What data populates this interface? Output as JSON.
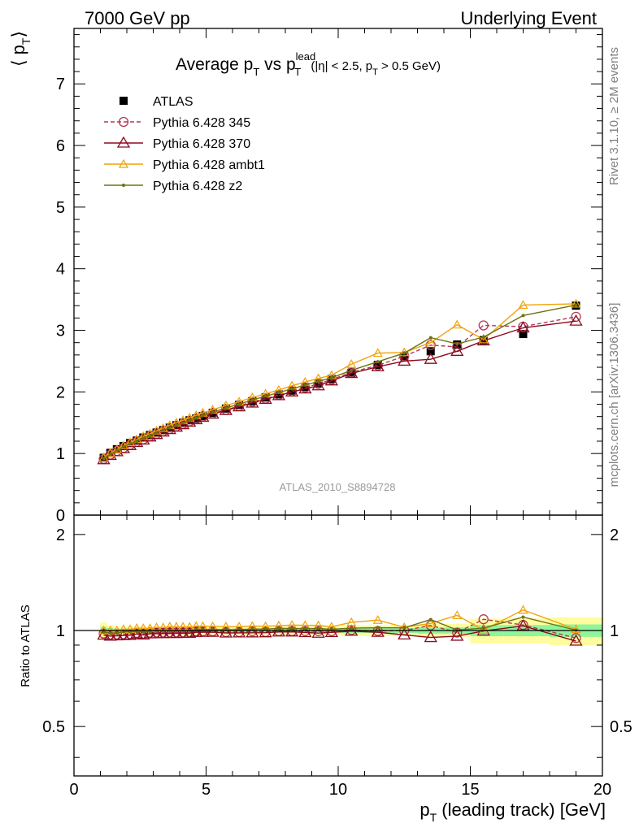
{
  "header": {
    "left": "7000 GeV pp",
    "right": "Underlying Event"
  },
  "side_labels": {
    "top": "Rivet 3.1.10, ≥ 2M events",
    "bottom": "mcplots.cern.ch [arXiv:1306.3436]"
  },
  "watermark": "ATLAS_2010_S8894728",
  "colors": {
    "ATLAS": "#000000",
    "p345": "#b03a55",
    "p370": "#8b0a1e",
    "ambt1": "#f0a30a",
    "z2": "#6b7310",
    "band_green": "#8ff59a",
    "band_yellow": "#fffca0"
  },
  "chart_data": {
    "type": "line",
    "title": {
      "main": "Average p",
      "sub1": "T",
      "vs": " vs p",
      "sup": "lead",
      "sub2": "T",
      "cuts_a": " (|η| < 2.5, p",
      "cuts_sub": "T",
      "cuts_b": " > 0.5 GeV)"
    },
    "xlabel": {
      "main": "p",
      "sub": "T",
      "rest": " (leading track) [GeV]"
    },
    "ylabel": {
      "open": "⟨ p",
      "sub": "T",
      "close": "⟩"
    },
    "ratio_ylabel": "Ratio to ATLAS",
    "xlim": [
      0,
      20
    ],
    "ylim": [
      0,
      7.9
    ],
    "ratio_ylim": [
      0.35,
      2.3
    ],
    "x_ticks": [
      "0",
      "5",
      "10",
      "15",
      "20"
    ],
    "y_ticks": [
      "0",
      "1",
      "2",
      "3",
      "4",
      "5",
      "6",
      "7"
    ],
    "ratio_ticks": [
      "0.5",
      "1",
      "2"
    ],
    "grid": false,
    "legend_position": "top-left",
    "x": [
      1.125,
      1.375,
      1.625,
      1.875,
      2.125,
      2.375,
      2.625,
      2.875,
      3.125,
      3.375,
      3.625,
      3.875,
      4.125,
      4.375,
      4.625,
      4.875,
      5.25,
      5.75,
      6.25,
      6.75,
      7.25,
      7.75,
      8.25,
      8.75,
      9.25,
      9.75,
      10.5,
      11.5,
      12.5,
      13.5,
      14.5,
      15.5,
      17.0,
      19.0
    ],
    "series": [
      {
        "key": "ATLAS",
        "name": "ATLAS",
        "marker": "square",
        "values": [
          0.93,
          1.01,
          1.07,
          1.12,
          1.17,
          1.21,
          1.26,
          1.3,
          1.34,
          1.38,
          1.42,
          1.46,
          1.5,
          1.54,
          1.57,
          1.61,
          1.66,
          1.73,
          1.79,
          1.85,
          1.91,
          1.96,
          2.02,
          2.08,
          2.14,
          2.21,
          2.31,
          2.44,
          2.58,
          2.66,
          2.77,
          2.84,
          2.94,
          3.4
        ],
        "band": [
          [
            0.93,
            1.12
          ],
          [
            0.97,
            1.04
          ]
        ]
      },
      {
        "key": "p345",
        "name": "Pythia 6.428 345",
        "marker": "circle",
        "dashed": true,
        "values": [
          0.91,
          0.98,
          1.04,
          1.09,
          1.14,
          1.19,
          1.23,
          1.28,
          1.32,
          1.36,
          1.4,
          1.44,
          1.48,
          1.52,
          1.56,
          1.6,
          1.65,
          1.71,
          1.77,
          1.84,
          1.89,
          1.95,
          2.01,
          2.07,
          2.13,
          2.2,
          2.32,
          2.43,
          2.58,
          2.76,
          2.73,
          3.08,
          3.06,
          3.22
        ]
      },
      {
        "key": "p370",
        "name": "Pythia 6.428 370",
        "marker": "triangle",
        "values": [
          0.9,
          0.97,
          1.03,
          1.08,
          1.13,
          1.18,
          1.22,
          1.27,
          1.31,
          1.35,
          1.39,
          1.43,
          1.47,
          1.51,
          1.55,
          1.59,
          1.64,
          1.7,
          1.76,
          1.82,
          1.88,
          1.94,
          2.0,
          2.05,
          2.1,
          2.18,
          2.3,
          2.41,
          2.5,
          2.53,
          2.66,
          2.83,
          3.04,
          3.15
        ]
      },
      {
        "key": "ambt1",
        "name": "Pythia 6.428 ambt1",
        "marker": "triangle-small",
        "values": [
          0.93,
          1.01,
          1.07,
          1.13,
          1.18,
          1.23,
          1.28,
          1.32,
          1.37,
          1.41,
          1.46,
          1.5,
          1.54,
          1.58,
          1.62,
          1.66,
          1.71,
          1.78,
          1.84,
          1.91,
          1.97,
          2.03,
          2.1,
          2.16,
          2.22,
          2.27,
          2.45,
          2.63,
          2.64,
          2.8,
          3.09,
          2.85,
          3.41,
          3.43
        ]
      },
      {
        "key": "z2",
        "name": "Pythia 6.428 z2",
        "marker": "dot",
        "values": [
          0.92,
          0.99,
          1.05,
          1.11,
          1.16,
          1.2,
          1.25,
          1.29,
          1.34,
          1.38,
          1.42,
          1.46,
          1.5,
          1.54,
          1.58,
          1.62,
          1.67,
          1.74,
          1.8,
          1.87,
          1.93,
          1.99,
          2.05,
          2.11,
          2.17,
          2.23,
          2.35,
          2.49,
          2.63,
          2.88,
          2.78,
          2.89,
          3.24,
          3.41
        ]
      }
    ]
  }
}
